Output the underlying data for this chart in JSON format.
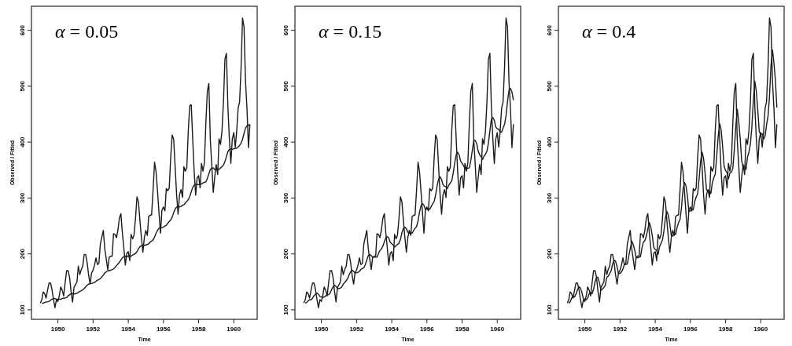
{
  "chart_data": [
    {
      "type": "line",
      "title": "α = 0.05",
      "xlabel": "Time",
      "ylabel": "Observed / Fitted",
      "xlim": [
        "1948-07",
        "1961-05"
      ],
      "ylim": [
        83,
        643
      ],
      "xticks": [
        "1950",
        "1952",
        "1954",
        "1956",
        "1958",
        "1960"
      ],
      "yticks": [
        100,
        200,
        300,
        400,
        500,
        600
      ],
      "x": [
        "1949-01",
        "1949-02",
        "1949-03",
        "1949-04",
        "1949-05",
        "1949-06",
        "1949-07",
        "1949-08",
        "1949-09",
        "1949-10",
        "1949-11",
        "1949-12",
        "1950-01",
        "1950-02",
        "1950-03",
        "1950-04",
        "1950-05",
        "1950-06",
        "1950-07",
        "1950-08",
        "1950-09",
        "1950-10",
        "1950-11",
        "1950-12",
        "1951-01",
        "1951-02",
        "1951-03",
        "1951-04",
        "1951-05",
        "1951-06",
        "1951-07",
        "1951-08",
        "1951-09",
        "1951-10",
        "1951-11",
        "1951-12",
        "1952-01",
        "1952-02",
        "1952-03",
        "1952-04",
        "1952-05",
        "1952-06",
        "1952-07",
        "1952-08",
        "1952-09",
        "1952-10",
        "1952-11",
        "1952-12",
        "1953-01",
        "1953-02",
        "1953-03",
        "1953-04",
        "1953-05",
        "1953-06",
        "1953-07",
        "1953-08",
        "1953-09",
        "1953-10",
        "1953-11",
        "1953-12",
        "1954-01",
        "1954-02",
        "1954-03",
        "1954-04",
        "1954-05",
        "1954-06",
        "1954-07",
        "1954-08",
        "1954-09",
        "1954-10",
        "1954-11",
        "1954-12",
        "1955-01",
        "1955-02",
        "1955-03",
        "1955-04",
        "1955-05",
        "1955-06",
        "1955-07",
        "1955-08",
        "1955-09",
        "1955-10",
        "1955-11",
        "1955-12",
        "1956-01",
        "1956-02",
        "1956-03",
        "1956-04",
        "1956-05",
        "1956-06",
        "1956-07",
        "1956-08",
        "1956-09",
        "1956-10",
        "1956-11",
        "1956-12",
        "1957-01",
        "1957-02",
        "1957-03",
        "1957-04",
        "1957-05",
        "1957-06",
        "1957-07",
        "1957-08",
        "1957-09",
        "1957-10",
        "1957-11",
        "1957-12",
        "1958-01",
        "1958-02",
        "1958-03",
        "1958-04",
        "1958-05",
        "1958-06",
        "1958-07",
        "1958-08",
        "1958-09",
        "1958-10",
        "1958-11",
        "1958-12",
        "1959-01",
        "1959-02",
        "1959-03",
        "1959-04",
        "1959-05",
        "1959-06",
        "1959-07",
        "1959-08",
        "1959-09",
        "1959-10",
        "1959-11",
        "1959-12",
        "1960-01",
        "1960-02",
        "1960-03",
        "1960-04",
        "1960-05",
        "1960-06",
        "1960-07",
        "1960-08",
        "1960-09",
        "1960-10",
        "1960-11",
        "1960-12"
      ],
      "series": [
        {
          "color": "#1a1a1a",
          "values": [
            112,
            118,
            132,
            129,
            121,
            135,
            148,
            148,
            136,
            119,
            104,
            118,
            115,
            126,
            141,
            135,
            125,
            149,
            170,
            170,
            158,
            133,
            114,
            140,
            145,
            150,
            178,
            163,
            172,
            178,
            199,
            199,
            184,
            162,
            146,
            166,
            171,
            180,
            193,
            181,
            183,
            218,
            230,
            242,
            209,
            191,
            172,
            194,
            196,
            196,
            236,
            235,
            229,
            243,
            264,
            272,
            237,
            211,
            180,
            201,
            204,
            188,
            235,
            227,
            234,
            264,
            302,
            293,
            259,
            229,
            203,
            229,
            242,
            233,
            267,
            269,
            270,
            315,
            364,
            347,
            312,
            274,
            237,
            278,
            284,
            277,
            317,
            313,
            318,
            374,
            413,
            405,
            355,
            306,
            271,
            306,
            315,
            301,
            356,
            348,
            355,
            422,
            465,
            467,
            404,
            347,
            305,
            336,
            340,
            318,
            362,
            348,
            363,
            435,
            491,
            505,
            404,
            359,
            310,
            337,
            360,
            342,
            406,
            396,
            420,
            472,
            548,
            559,
            463,
            407,
            362,
            405,
            417,
            391,
            419,
            461,
            472,
            535,
            622,
            606,
            508,
            461,
            390,
            432
          ]
        },
        {
          "color": "#1a1a1a",
          "values": [
            null,
            112,
            112,
            113,
            114,
            114,
            115,
            117,
            119,
            120,
            120,
            119,
            119,
            119,
            119,
            120,
            121,
            121,
            122,
            125,
            127,
            129,
            129,
            128,
            129,
            130,
            131,
            133,
            134,
            136,
            138,
            141,
            144,
            146,
            147,
            147,
            148,
            149,
            151,
            153,
            154,
            156,
            159,
            162,
            166,
            168,
            170,
            170,
            171,
            172,
            173,
            176,
            179,
            182,
            185,
            189,
            193,
            195,
            196,
            195,
            196,
            196,
            196,
            198,
            199,
            201,
            204,
            209,
            213,
            215,
            216,
            215,
            216,
            217,
            218,
            221,
            223,
            225,
            230,
            237,
            242,
            246,
            247,
            247,
            248,
            250,
            251,
            255,
            258,
            261,
            266,
            274,
            280,
            284,
            285,
            284,
            285,
            287,
            288,
            291,
            294,
            297,
            303,
            311,
            319,
            323,
            325,
            324,
            324,
            325,
            325,
            327,
            328,
            329,
            335,
            343,
            351,
            353,
            354,
            351,
            351,
            351,
            351,
            354,
            356,
            359,
            365,
            374,
            383,
            387,
            388,
            387,
            388,
            389,
            389,
            391,
            394,
            398,
            405,
            416,
            425,
            429,
            431,
            429
          ]
        }
      ]
    },
    {
      "type": "line",
      "title": "α = 0.15",
      "xlabel": "Time",
      "ylabel": "Observed / Fitted",
      "xlim": [
        "1948-07",
        "1961-05"
      ],
      "ylim": [
        83,
        643
      ],
      "xticks": [
        "1950",
        "1952",
        "1954",
        "1956",
        "1958",
        "1960"
      ],
      "yticks": [
        100,
        200,
        300,
        400,
        500,
        600
      ],
      "x": [
        "1949-01",
        "1949-02",
        "1949-03",
        "1949-04",
        "1949-05",
        "1949-06",
        "1949-07",
        "1949-08",
        "1949-09",
        "1949-10",
        "1949-11",
        "1949-12",
        "1950-01",
        "1950-02",
        "1950-03",
        "1950-04",
        "1950-05",
        "1950-06",
        "1950-07",
        "1950-08",
        "1950-09",
        "1950-10",
        "1950-11",
        "1950-12",
        "1951-01",
        "1951-02",
        "1951-03",
        "1951-04",
        "1951-05",
        "1951-06",
        "1951-07",
        "1951-08",
        "1951-09",
        "1951-10",
        "1951-11",
        "1951-12",
        "1952-01",
        "1952-02",
        "1952-03",
        "1952-04",
        "1952-05",
        "1952-06",
        "1952-07",
        "1952-08",
        "1952-09",
        "1952-10",
        "1952-11",
        "1952-12",
        "1953-01",
        "1953-02",
        "1953-03",
        "1953-04",
        "1953-05",
        "1953-06",
        "1953-07",
        "1953-08",
        "1953-09",
        "1953-10",
        "1953-11",
        "1953-12",
        "1954-01",
        "1954-02",
        "1954-03",
        "1954-04",
        "1954-05",
        "1954-06",
        "1954-07",
        "1954-08",
        "1954-09",
        "1954-10",
        "1954-11",
        "1954-12",
        "1955-01",
        "1955-02",
        "1955-03",
        "1955-04",
        "1955-05",
        "1955-06",
        "1955-07",
        "1955-08",
        "1955-09",
        "1955-10",
        "1955-11",
        "1955-12",
        "1956-01",
        "1956-02",
        "1956-03",
        "1956-04",
        "1956-05",
        "1956-06",
        "1956-07",
        "1956-08",
        "1956-09",
        "1956-10",
        "1956-11",
        "1956-12",
        "1957-01",
        "1957-02",
        "1957-03",
        "1957-04",
        "1957-05",
        "1957-06",
        "1957-07",
        "1957-08",
        "1957-09",
        "1957-10",
        "1957-11",
        "1957-12",
        "1958-01",
        "1958-02",
        "1958-03",
        "1958-04",
        "1958-05",
        "1958-06",
        "1958-07",
        "1958-08",
        "1958-09",
        "1958-10",
        "1958-11",
        "1958-12",
        "1959-01",
        "1959-02",
        "1959-03",
        "1959-04",
        "1959-05",
        "1959-06",
        "1959-07",
        "1959-08",
        "1959-09",
        "1959-10",
        "1959-11",
        "1959-12",
        "1960-01",
        "1960-02",
        "1960-03",
        "1960-04",
        "1960-05",
        "1960-06",
        "1960-07",
        "1960-08",
        "1960-09",
        "1960-10",
        "1960-11",
        "1960-12"
      ],
      "series": [
        {
          "color": "#1a1a1a",
          "values": [
            112,
            118,
            132,
            129,
            121,
            135,
            148,
            148,
            136,
            119,
            104,
            118,
            115,
            126,
            141,
            135,
            125,
            149,
            170,
            170,
            158,
            133,
            114,
            140,
            145,
            150,
            178,
            163,
            172,
            178,
            199,
            199,
            184,
            162,
            146,
            166,
            171,
            180,
            193,
            181,
            183,
            218,
            230,
            242,
            209,
            191,
            172,
            194,
            196,
            196,
            236,
            235,
            229,
            243,
            264,
            272,
            237,
            211,
            180,
            201,
            204,
            188,
            235,
            227,
            234,
            264,
            302,
            293,
            259,
            229,
            203,
            229,
            242,
            233,
            267,
            269,
            270,
            315,
            364,
            347,
            312,
            274,
            237,
            278,
            284,
            277,
            317,
            313,
            318,
            374,
            413,
            405,
            355,
            306,
            271,
            306,
            315,
            301,
            356,
            348,
            355,
            422,
            465,
            467,
            404,
            347,
            305,
            336,
            340,
            318,
            362,
            348,
            363,
            435,
            491,
            505,
            404,
            359,
            310,
            337,
            360,
            342,
            406,
            396,
            420,
            472,
            548,
            559,
            463,
            407,
            362,
            405,
            417,
            391,
            419,
            461,
            472,
            535,
            622,
            606,
            508,
            461,
            390,
            432
          ]
        },
        {
          "color": "#1a1a1a",
          "values": [
            null,
            112,
            113,
            116,
            118,
            118,
            121,
            125,
            128,
            130,
            128,
            124,
            123,
            122,
            123,
            125,
            127,
            127,
            130,
            136,
            141,
            144,
            142,
            138,
            138,
            139,
            141,
            146,
            149,
            152,
            156,
            163,
            168,
            171,
            169,
            166,
            166,
            167,
            169,
            172,
            174,
            175,
            181,
            189,
            197,
            199,
            197,
            194,
            194,
            194,
            194,
            201,
            206,
            209,
            214,
            222,
            229,
            231,
            228,
            221,
            218,
            216,
            212,
            215,
            217,
            219,
            226,
            238,
            246,
            248,
            245,
            239,
            237,
            238,
            237,
            242,
            246,
            249,
            259,
            275,
            286,
            290,
            287,
            280,
            280,
            280,
            280,
            285,
            290,
            294,
            306,
            322,
            334,
            338,
            333,
            324,
            321,
            320,
            317,
            323,
            327,
            331,
            345,
            363,
            378,
            382,
            377,
            366,
            362,
            358,
            352,
            354,
            353,
            354,
            367,
            385,
            403,
            403,
            397,
            384,
            377,
            374,
            369,
            375,
            378,
            384,
            398,
            420,
            441,
            444,
            439,
            427,
            424,
            423,
            418,
            418,
            425,
            432,
            447,
            473,
            493,
            496,
            490,
            475
          ]
        }
      ]
    },
    {
      "type": "line",
      "title": "α = 0.4",
      "xlabel": "Time",
      "ylabel": "Observed / Fitted",
      "xlim": [
        "1948-07",
        "1961-05"
      ],
      "ylim": [
        83,
        643
      ],
      "xticks": [
        "1950",
        "1952",
        "1954",
        "1956",
        "1958",
        "1960"
      ],
      "yticks": [
        100,
        200,
        300,
        400,
        500,
        600
      ],
      "x": [
        "1949-01",
        "1949-02",
        "1949-03",
        "1949-04",
        "1949-05",
        "1949-06",
        "1949-07",
        "1949-08",
        "1949-09",
        "1949-10",
        "1949-11",
        "1949-12",
        "1950-01",
        "1950-02",
        "1950-03",
        "1950-04",
        "1950-05",
        "1950-06",
        "1950-07",
        "1950-08",
        "1950-09",
        "1950-10",
        "1950-11",
        "1950-12",
        "1951-01",
        "1951-02",
        "1951-03",
        "1951-04",
        "1951-05",
        "1951-06",
        "1951-07",
        "1951-08",
        "1951-09",
        "1951-10",
        "1951-11",
        "1951-12",
        "1952-01",
        "1952-02",
        "1952-03",
        "1952-04",
        "1952-05",
        "1952-06",
        "1952-07",
        "1952-08",
        "1952-09",
        "1952-10",
        "1952-11",
        "1952-12",
        "1953-01",
        "1953-02",
        "1953-03",
        "1953-04",
        "1953-05",
        "1953-06",
        "1953-07",
        "1953-08",
        "1953-09",
        "1953-10",
        "1953-11",
        "1953-12",
        "1954-01",
        "1954-02",
        "1954-03",
        "1954-04",
        "1954-05",
        "1954-06",
        "1954-07",
        "1954-08",
        "1954-09",
        "1954-10",
        "1954-11",
        "1954-12",
        "1955-01",
        "1955-02",
        "1955-03",
        "1955-04",
        "1955-05",
        "1955-06",
        "1955-07",
        "1955-08",
        "1955-09",
        "1955-10",
        "1955-11",
        "1955-12",
        "1956-01",
        "1956-02",
        "1956-03",
        "1956-04",
        "1956-05",
        "1956-06",
        "1956-07",
        "1956-08",
        "1956-09",
        "1956-10",
        "1956-11",
        "1956-12",
        "1957-01",
        "1957-02",
        "1957-03",
        "1957-04",
        "1957-05",
        "1957-06",
        "1957-07",
        "1957-08",
        "1957-09",
        "1957-10",
        "1957-11",
        "1957-12",
        "1958-01",
        "1958-02",
        "1958-03",
        "1958-04",
        "1958-05",
        "1958-06",
        "1958-07",
        "1958-08",
        "1958-09",
        "1958-10",
        "1958-11",
        "1958-12",
        "1959-01",
        "1959-02",
        "1959-03",
        "1959-04",
        "1959-05",
        "1959-06",
        "1959-07",
        "1959-08",
        "1959-09",
        "1959-10",
        "1959-11",
        "1959-12",
        "1960-01",
        "1960-02",
        "1960-03",
        "1960-04",
        "1960-05",
        "1960-06",
        "1960-07",
        "1960-08",
        "1960-09",
        "1960-10",
        "1960-11",
        "1960-12"
      ],
      "series": [
        {
          "color": "#1a1a1a",
          "values": [
            112,
            118,
            132,
            129,
            121,
            135,
            148,
            148,
            136,
            119,
            104,
            118,
            115,
            126,
            141,
            135,
            125,
            149,
            170,
            170,
            158,
            133,
            114,
            140,
            145,
            150,
            178,
            163,
            172,
            178,
            199,
            199,
            184,
            162,
            146,
            166,
            171,
            180,
            193,
            181,
            183,
            218,
            230,
            242,
            209,
            191,
            172,
            194,
            196,
            196,
            236,
            235,
            229,
            243,
            264,
            272,
            237,
            211,
            180,
            201,
            204,
            188,
            235,
            227,
            234,
            264,
            302,
            293,
            259,
            229,
            203,
            229,
            242,
            233,
            267,
            269,
            270,
            315,
            364,
            347,
            312,
            274,
            237,
            278,
            284,
            277,
            317,
            313,
            318,
            374,
            413,
            405,
            355,
            306,
            271,
            306,
            315,
            301,
            356,
            348,
            355,
            422,
            465,
            467,
            404,
            347,
            305,
            336,
            340,
            318,
            362,
            348,
            363,
            435,
            491,
            505,
            404,
            359,
            310,
            337,
            360,
            342,
            406,
            396,
            420,
            472,
            548,
            559,
            463,
            407,
            362,
            405,
            417,
            391,
            419,
            461,
            472,
            535,
            622,
            606,
            508,
            461,
            390,
            432
          ]
        },
        {
          "color": "#1a1a1a",
          "values": [
            null,
            112,
            114,
            121,
            124,
            123,
            128,
            136,
            141,
            139,
            131,
            120,
            119,
            118,
            121,
            129,
            131,
            129,
            137,
            150,
            158,
            158,
            148,
            135,
            137,
            140,
            144,
            158,
            160,
            165,
            170,
            182,
            189,
            187,
            177,
            165,
            165,
            168,
            173,
            181,
            181,
            182,
            196,
            210,
            223,
            217,
            207,
            193,
            193,
            194,
            195,
            211,
            221,
            224,
            232,
            245,
            256,
            248,
            233,
            212,
            208,
            206,
            199,
            213,
            219,
            225,
            241,
            265,
            276,
            269,
            253,
            233,
            232,
            236,
            235,
            248,
            256,
            262,
            283,
            315,
            328,
            322,
            303,
            276,
            277,
            280,
            279,
            294,
            302,
            308,
            335,
            366,
            382,
            371,
            345,
            315,
            312,
            313,
            308,
            327,
            336,
            343,
            375,
            411,
            433,
            422,
            392,
            357,
            349,
            345,
            334,
            345,
            346,
            353,
            386,
            428,
            459,
            437,
            406,
            367,
            355,
            357,
            351,
            373,
            382,
            397,
            427,
            476,
            509,
            491,
            457,
            419,
            414,
            415,
            405,
            411,
            431,
            447,
            482,
            538,
            565,
            542,
            510,
            462
          ]
        }
      ]
    }
  ]
}
